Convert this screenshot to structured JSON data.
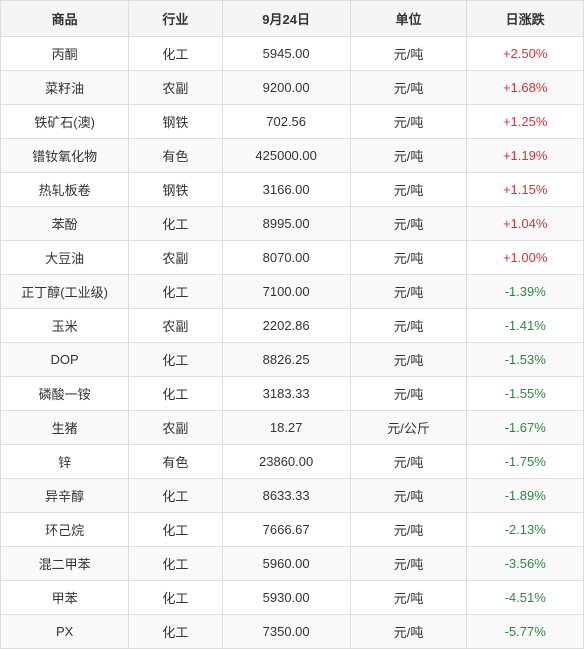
{
  "columns": [
    "商品",
    "行业",
    "9月24日",
    "单位",
    "日涨跌"
  ],
  "col_widths": [
    "22%",
    "16%",
    "22%",
    "20%",
    "20%"
  ],
  "colors": {
    "positive": "#e03131",
    "negative": "#2b8a3e",
    "border": "#dddddd",
    "header_bg": "#f5f5f5",
    "row_even_bg": "#f9f9f9",
    "row_odd_bg": "#ffffff",
    "text": "#333333"
  },
  "rows": [
    {
      "product": "丙酮",
      "industry": "化工",
      "price": "5945.00",
      "unit": "元/吨",
      "change": "+2.50%",
      "trend": "up"
    },
    {
      "product": "菜籽油",
      "industry": "农副",
      "price": "9200.00",
      "unit": "元/吨",
      "change": "+1.68%",
      "trend": "up"
    },
    {
      "product": "铁矿石(澳)",
      "industry": "钢铁",
      "price": "702.56",
      "unit": "元/吨",
      "change": "+1.25%",
      "trend": "up"
    },
    {
      "product": "镨钕氧化物",
      "industry": "有色",
      "price": "425000.00",
      "unit": "元/吨",
      "change": "+1.19%",
      "trend": "up"
    },
    {
      "product": "热轧板卷",
      "industry": "钢铁",
      "price": "3166.00",
      "unit": "元/吨",
      "change": "+1.15%",
      "trend": "up"
    },
    {
      "product": "苯酚",
      "industry": "化工",
      "price": "8995.00",
      "unit": "元/吨",
      "change": "+1.04%",
      "trend": "up"
    },
    {
      "product": "大豆油",
      "industry": "农副",
      "price": "8070.00",
      "unit": "元/吨",
      "change": "+1.00%",
      "trend": "up"
    },
    {
      "product": "正丁醇(工业级)",
      "industry": "化工",
      "price": "7100.00",
      "unit": "元/吨",
      "change": "-1.39%",
      "trend": "down"
    },
    {
      "product": "玉米",
      "industry": "农副",
      "price": "2202.86",
      "unit": "元/吨",
      "change": "-1.41%",
      "trend": "down"
    },
    {
      "product": "DOP",
      "industry": "化工",
      "price": "8826.25",
      "unit": "元/吨",
      "change": "-1.53%",
      "trend": "down"
    },
    {
      "product": "磷酸一铵",
      "industry": "化工",
      "price": "3183.33",
      "unit": "元/吨",
      "change": "-1.55%",
      "trend": "down"
    },
    {
      "product": "生猪",
      "industry": "农副",
      "price": "18.27",
      "unit": "元/公斤",
      "change": "-1.67%",
      "trend": "down"
    },
    {
      "product": "锌",
      "industry": "有色",
      "price": "23860.00",
      "unit": "元/吨",
      "change": "-1.75%",
      "trend": "down"
    },
    {
      "product": "异辛醇",
      "industry": "化工",
      "price": "8633.33",
      "unit": "元/吨",
      "change": "-1.89%",
      "trend": "down"
    },
    {
      "product": "环己烷",
      "industry": "化工",
      "price": "7666.67",
      "unit": "元/吨",
      "change": "-2.13%",
      "trend": "down"
    },
    {
      "product": "混二甲苯",
      "industry": "化工",
      "price": "5960.00",
      "unit": "元/吨",
      "change": "-3.56%",
      "trend": "down"
    },
    {
      "product": "甲苯",
      "industry": "化工",
      "price": "5930.00",
      "unit": "元/吨",
      "change": "-4.51%",
      "trend": "down"
    },
    {
      "product": "PX",
      "industry": "化工",
      "price": "7350.00",
      "unit": "元/吨",
      "change": "-5.77%",
      "trend": "down"
    }
  ]
}
